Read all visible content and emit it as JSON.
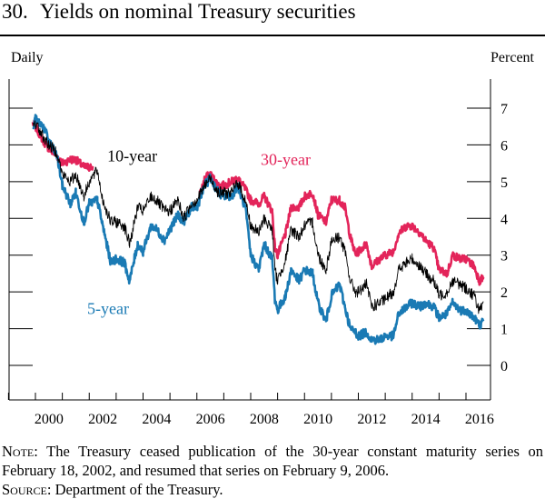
{
  "title": {
    "number": "30.",
    "text": "Yields on nominal Treasury securities"
  },
  "chart_data": {
    "type": "line",
    "frequency_label": "Daily",
    "unit_label": "Percent",
    "xlim": [
      1999.0,
      2016.8
    ],
    "ylim": [
      -0.75,
      7.5
    ],
    "x_ticks": [
      2000,
      2002,
      2004,
      2006,
      2008,
      2010,
      2012,
      2014,
      2016
    ],
    "x_tick_labels": [
      "2000",
      "2002",
      "2004",
      "2006",
      "2008",
      "2010",
      "2012",
      "2014",
      "2016"
    ],
    "y_ticks": [
      0,
      1,
      2,
      3,
      4,
      5,
      6,
      7
    ],
    "y_tick_labels": [
      "0",
      "1",
      "2",
      "3",
      "4",
      "5",
      "6",
      "7"
    ],
    "grid": false,
    "series": [
      {
        "name": "30-year",
        "color": "#e3245a",
        "x": [
          1999.9,
          2000.0,
          2000.3,
          2000.5,
          2000.8,
          2001.0,
          2001.3,
          2001.5,
          2001.8,
          2002.0,
          2002.13,
          null,
          2006.1,
          2006.3,
          2006.5,
          2006.8,
          2007.0,
          2007.3,
          2007.5,
          2007.8,
          2008.0,
          2008.3,
          2008.5,
          2008.8,
          2008.9,
          2009.0,
          2009.3,
          2009.5,
          2009.8,
          2010.0,
          2010.3,
          2010.5,
          2010.8,
          2011.0,
          2011.3,
          2011.5,
          2011.7,
          2011.9,
          2012.0,
          2012.3,
          2012.5,
          2012.8,
          2013.0,
          2013.3,
          2013.5,
          2013.8,
          2014.0,
          2014.3,
          2014.5,
          2014.8,
          2015.0,
          2015.3,
          2015.5,
          2015.8,
          2016.0,
          2016.3,
          2016.5,
          2016.65
        ],
        "y": [
          6.6,
          6.5,
          6.1,
          5.9,
          5.7,
          5.5,
          5.6,
          5.6,
          5.4,
          5.4,
          5.4,
          null,
          4.6,
          5.1,
          5.2,
          4.9,
          4.9,
          5.0,
          5.1,
          4.8,
          4.5,
          4.4,
          4.6,
          4.2,
          3.2,
          3.0,
          3.6,
          4.3,
          4.3,
          4.6,
          4.7,
          4.1,
          3.9,
          4.5,
          4.5,
          4.3,
          3.5,
          3.0,
          3.1,
          3.3,
          2.7,
          2.9,
          3.0,
          3.1,
          3.6,
          3.8,
          3.8,
          3.6,
          3.4,
          3.2,
          2.6,
          2.5,
          3.0,
          2.9,
          2.9,
          2.7,
          2.3,
          2.4
        ]
      },
      {
        "name": "10-year",
        "color": "#000000",
        "x": [
          1999.9,
          2000.0,
          2000.3,
          2000.5,
          2000.8,
          2001.0,
          2001.3,
          2001.5,
          2001.8,
          2002.0,
          2002.3,
          2002.5,
          2002.8,
          2003.0,
          2003.3,
          2003.5,
          2003.8,
          2004.0,
          2004.3,
          2004.5,
          2004.8,
          2005.0,
          2005.3,
          2005.5,
          2005.8,
          2006.0,
          2006.3,
          2006.5,
          2006.8,
          2007.0,
          2007.3,
          2007.5,
          2007.8,
          2008.0,
          2008.3,
          2008.5,
          2008.8,
          2008.9,
          2009.0,
          2009.3,
          2009.5,
          2009.8,
          2010.0,
          2010.3,
          2010.5,
          2010.8,
          2011.0,
          2011.3,
          2011.5,
          2011.7,
          2011.9,
          2012.0,
          2012.3,
          2012.5,
          2012.8,
          2013.0,
          2013.3,
          2013.5,
          2013.8,
          2014.0,
          2014.3,
          2014.5,
          2014.8,
          2015.0,
          2015.3,
          2015.5,
          2015.8,
          2016.0,
          2016.3,
          2016.5,
          2016.65
        ],
        "y": [
          6.5,
          6.6,
          6.2,
          6.0,
          5.8,
          5.2,
          5.0,
          5.2,
          4.6,
          5.0,
          5.3,
          4.5,
          3.9,
          3.9,
          3.8,
          3.3,
          4.3,
          4.2,
          4.6,
          4.5,
          4.2,
          4.2,
          4.5,
          4.0,
          4.4,
          4.5,
          4.9,
          5.1,
          4.7,
          4.7,
          4.7,
          5.0,
          4.5,
          3.8,
          3.6,
          4.0,
          3.7,
          2.6,
          2.3,
          2.9,
          3.7,
          3.5,
          3.8,
          3.9,
          3.0,
          2.6,
          3.4,
          3.5,
          3.1,
          2.3,
          2.0,
          2.0,
          2.2,
          1.6,
          1.7,
          1.8,
          2.0,
          2.6,
          2.8,
          2.9,
          2.7,
          2.5,
          2.3,
          1.9,
          2.0,
          2.3,
          2.2,
          2.1,
          1.9,
          1.5,
          1.6
        ]
      },
      {
        "name": "5-year",
        "color": "#1a7ab4",
        "x": [
          1999.9,
          2000.0,
          2000.3,
          2000.5,
          2000.8,
          2001.0,
          2001.3,
          2001.5,
          2001.8,
          2002.0,
          2002.3,
          2002.5,
          2002.8,
          2003.0,
          2003.3,
          2003.5,
          2003.8,
          2004.0,
          2004.3,
          2004.5,
          2004.8,
          2005.0,
          2005.3,
          2005.5,
          2005.8,
          2006.0,
          2006.3,
          2006.5,
          2006.8,
          2007.0,
          2007.3,
          2007.5,
          2007.8,
          2008.0,
          2008.3,
          2008.5,
          2008.8,
          2008.9,
          2009.0,
          2009.3,
          2009.5,
          2009.8,
          2010.0,
          2010.3,
          2010.5,
          2010.8,
          2011.0,
          2011.3,
          2011.5,
          2011.7,
          2011.9,
          2012.0,
          2012.3,
          2012.5,
          2012.8,
          2013.0,
          2013.3,
          2013.5,
          2013.8,
          2014.0,
          2014.3,
          2014.5,
          2014.8,
          2015.0,
          2015.3,
          2015.5,
          2015.8,
          2016.0,
          2016.3,
          2016.5,
          2016.65
        ],
        "y": [
          6.4,
          6.7,
          6.5,
          6.1,
          5.7,
          4.9,
          4.4,
          4.7,
          3.9,
          4.4,
          4.5,
          3.8,
          2.8,
          2.9,
          2.8,
          2.3,
          3.3,
          3.1,
          3.8,
          3.7,
          3.4,
          3.7,
          4.1,
          3.9,
          4.3,
          4.3,
          4.9,
          5.1,
          4.7,
          4.6,
          4.6,
          4.9,
          4.3,
          3.0,
          2.6,
          3.3,
          2.9,
          1.8,
          1.5,
          1.9,
          2.6,
          2.3,
          2.6,
          2.5,
          1.7,
          1.2,
          1.9,
          2.2,
          1.6,
          1.0,
          0.9,
          0.8,
          0.9,
          0.7,
          0.7,
          0.8,
          0.8,
          1.4,
          1.6,
          1.7,
          1.6,
          1.7,
          1.6,
          1.3,
          1.4,
          1.7,
          1.5,
          1.5,
          1.3,
          1.1,
          1.2
        ]
      }
    ],
    "annotations": [
      "10-year",
      "30-year",
      "5-year"
    ]
  },
  "notes": {
    "note_label": "Note:",
    "note_text": "The Treasury ceased publication of the 30-year constant maturity series on February 18, 2002, and resumed that series on February 9, 2006.",
    "source_label": "Source:",
    "source_text": "Department of the Treasury."
  }
}
